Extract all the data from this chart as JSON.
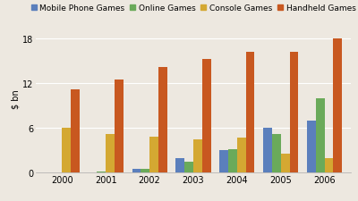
{
  "years": [
    2000,
    2001,
    2002,
    2003,
    2004,
    2005,
    2006
  ],
  "mobile_phone": [
    0.0,
    0.1,
    0.5,
    2.0,
    3.0,
    6.0,
    7.0
  ],
  "online": [
    0.0,
    0.2,
    0.5,
    1.5,
    3.2,
    5.2,
    10.0
  ],
  "console": [
    6.0,
    5.2,
    4.8,
    4.5,
    4.7,
    2.5,
    2.0
  ],
  "handheld": [
    11.2,
    12.5,
    14.2,
    15.2,
    16.2,
    16.2,
    18.0
  ],
  "colors": {
    "mobile": "#5b7fbc",
    "online": "#6aaa5a",
    "console": "#d4a832",
    "handheld": "#c85820"
  },
  "legend_labels": [
    "Mobile Phone Games",
    "Online Games",
    "Console Games",
    "Handheld Games"
  ],
  "ylabel": "$ bn",
  "ylim": [
    0,
    20
  ],
  "yticks": [
    0,
    6,
    12,
    18
  ],
  "background_color": "#ede8e0",
  "grid_color": "#ffffff",
  "bar_width": 0.2,
  "axis_fontsize": 7,
  "legend_fontsize": 6.5
}
